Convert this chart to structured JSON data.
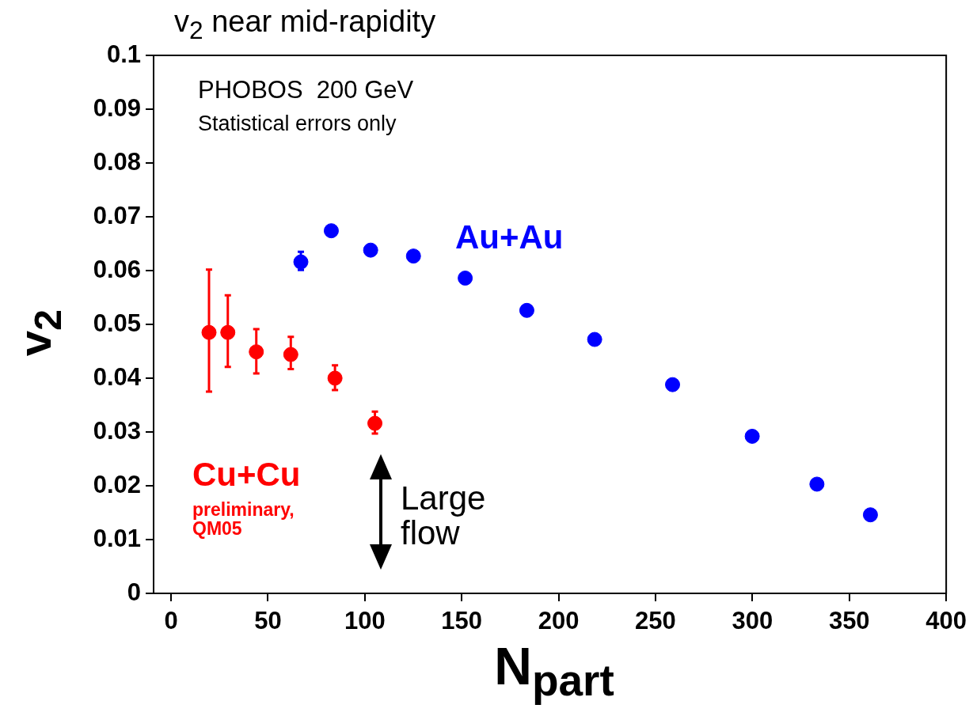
{
  "chart_data": {
    "type": "scatter",
    "title": "v$_{2}$ near mid-rapidity",
    "xlabel": "N$_{part}$",
    "ylabel": "v$_{2}$",
    "xlim": [
      -9,
      400
    ],
    "xticks": [
      0,
      50,
      100,
      150,
      200,
      250,
      300,
      350,
      400
    ],
    "ylim": [
      0,
      0.1
    ],
    "yticks": [
      0,
      0.01,
      0.02,
      0.03,
      0.04,
      0.05,
      0.06,
      0.07,
      0.08,
      0.09,
      0.1
    ],
    "grid": false,
    "legend": false,
    "marker": "circle",
    "annotations": [
      "PHOBOS  200 GeV",
      "Statistical errors only",
      "preliminary, QM05",
      "Large flow"
    ],
    "series": [
      {
        "name": "Au+Au",
        "color": "#0000ff",
        "x": [
          67.0,
          82.7,
          103.0,
          125.1,
          151.8,
          183.6,
          218.6,
          258.8,
          299.9,
          333.3,
          360.9
        ],
        "values": [
          0.0616,
          0.0674,
          0.0638,
          0.0627,
          0.0586,
          0.0526,
          0.0472,
          0.0388,
          0.0292,
          0.0203,
          0.0146
        ],
        "errors": [
          [
            0.0601,
            0.0635
          ],
          null,
          null,
          null,
          null,
          null,
          null,
          null,
          null,
          null,
          null
        ]
      },
      {
        "name": "Cu+Cu",
        "color": "#ff0000",
        "x": [
          19.6,
          29.3,
          44.0,
          61.8,
          84.6,
          105.2
        ],
        "values": [
          0.0485,
          0.0485,
          0.0449,
          0.0444,
          0.04,
          0.0316
        ],
        "errors": [
          [
            0.0375,
            0.0602
          ],
          [
            0.0421,
            0.0554
          ],
          [
            0.0409,
            0.0491
          ],
          [
            0.0417,
            0.0477
          ],
          [
            0.0378,
            0.0424
          ],
          [
            0.0297,
            0.0338
          ]
        ]
      }
    ]
  }
}
